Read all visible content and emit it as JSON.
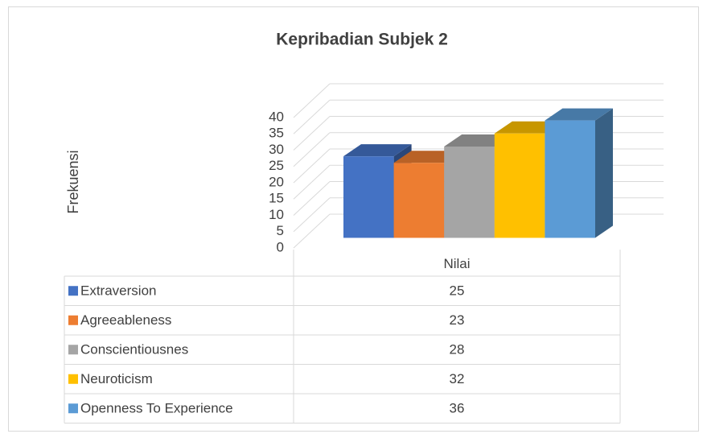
{
  "chart_data": {
    "type": "bar",
    "title": "Kepribadian Subjek 2",
    "y_label": "Frekuensi",
    "categories": [
      "Nilai"
    ],
    "series": [
      {
        "name": "Extraversion",
        "color": "#4472c4",
        "values": [
          25
        ]
      },
      {
        "name": "Agreeableness",
        "color": "#ed7d31",
        "values": [
          23
        ]
      },
      {
        "name": "Conscientiousnes",
        "color": "#a5a5a5",
        "values": [
          28
        ]
      },
      {
        "name": "Neuroticism",
        "color": "#ffc000",
        "values": [
          32
        ]
      },
      {
        "name": "Openness To Experience",
        "color": "#5b9bd5",
        "values": [
          36
        ]
      }
    ],
    "ylim": [
      0,
      40
    ],
    "yticks": [
      0,
      5,
      10,
      15,
      20,
      25,
      30,
      35,
      40
    ],
    "grid": true
  }
}
